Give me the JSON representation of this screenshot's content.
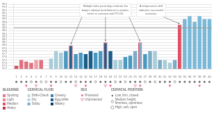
{
  "chart_data": {
    "type": "bar",
    "categories": [
      "1",
      "2",
      "3",
      "4",
      "5",
      "6",
      "7",
      "8",
      "9",
      "10",
      "11",
      "12",
      "13",
      "14",
      "15",
      "16",
      "17",
      "18",
      "19",
      "20",
      "21",
      "22",
      "23",
      "24",
      "25",
      "26",
      "27",
      "28",
      "29",
      "30",
      "31",
      "32",
      "33",
      "34",
      "35",
      "36",
      "37",
      "38",
      "39",
      "40"
    ],
    "values": [
      97.3,
      97.5,
      97.45,
      97.4,
      97.5,
      97.5,
      97.2,
      97.55,
      97.8,
      97.75,
      97.8,
      98.0,
      97.7,
      97.75,
      97.7,
      97.8,
      97.75,
      97.8,
      98.1,
      97.8,
      97.5,
      97.5,
      97.6,
      97.65,
      97.8,
      98.1,
      97.7,
      97.8,
      97.8,
      97.5,
      97.5,
      97.4,
      97.5,
      98.7,
      98.9,
      99.0,
      98.8,
      99.0,
      98.9,
      98.9
    ],
    "colors": [
      "#d45060",
      "#e07080",
      "#e07080",
      "#e07080",
      "#f0a0a8",
      "#e07080",
      "#f0a0a8",
      "#a8ccd8",
      "#a8ccd8",
      "#a8ccd8",
      "#4898c0",
      "#1a5c88",
      "#4898c0",
      "#4898c0",
      "#1a5c88",
      "#1a5c88",
      "#4898c0",
      "#4898c0",
      "#1a5c88",
      "#1a5c88",
      "#a8ccd8",
      "#a8ccd8",
      "#4898c0",
      "#4898c0",
      "#7aacc8",
      "#7aacc8",
      "#4898c0",
      "#7aacc8",
      "#a8ccd8",
      "#7aacc8",
      "#a8ccd8",
      "#a8ccd8",
      "#7aacc8",
      "#e05060",
      "#7ab8d8",
      "#7ab8d8",
      "#7ab8d8",
      "#7ab8d8",
      "#7ab8d8",
      "#7ab8d8"
    ],
    "ylim": [
      97.2,
      99.45
    ],
    "yticks": [
      97.2,
      97.3,
      97.4,
      97.5,
      97.6,
      97.7,
      97.8,
      97.9,
      {
        "value": 98,
        "label": "98.0"
      },
      98.1,
      98.2,
      98.3,
      98.4,
      98.5,
      98.6,
      98.7,
      98.8,
      98.9,
      {
        "value": 99,
        "label": "99.0"
      },
      99.1,
      99.2,
      99.3,
      99.4
    ],
    "grid": true,
    "coverline": 98.6,
    "coverline_color": "#999999",
    "outlined_days": [
      12,
      19,
      26,
      34
    ],
    "outline_color": "#e04060",
    "annotations": [
      {
        "text": "Multiple false peak days indicate the\nbody's attempt (and failure) to ovulate,\nwhich is common with PCOS.",
        "days": [
          12,
          19,
          26
        ]
      },
      {
        "text": "A temperature shift\nindicates successful\novulation.",
        "days": [
          34
        ]
      }
    ],
    "cervical_position": [
      1,
      1,
      1,
      0,
      1,
      0,
      0,
      1,
      1,
      0,
      1,
      1,
      0,
      1,
      1,
      1,
      0,
      1,
      1,
      1,
      0,
      1,
      0,
      1,
      1,
      1,
      0,
      1,
      0,
      1,
      1,
      1,
      0,
      1,
      1,
      1,
      1,
      1,
      1,
      1
    ],
    "sex_protected": [
      3,
      8,
      15,
      20,
      26,
      32,
      38
    ],
    "sex_unprotected": [
      5,
      13,
      19,
      25
    ],
    "sex_color": "#e06080",
    "legend_groups": [
      {
        "title": "BLEEDING",
        "items": [
          {
            "label": "Spotting",
            "color": "#e87090"
          },
          {
            "label": "Light",
            "color": "#f08090"
          },
          {
            "label": "Medium",
            "color": "#e05060"
          },
          {
            "label": "Heavy",
            "color": "#c03040"
          }
        ]
      },
      {
        "title": "CERVICAL FLUID",
        "items": [
          {
            "label": "Shift+Check",
            "color": "#c0d4dc"
          },
          {
            "label": "Dry",
            "color": "#b8d4e0"
          },
          {
            "label": "Sticky",
            "color": "#7aacca"
          },
          {
            "label": "Creamy",
            "color": "#3a7ca8"
          },
          {
            "label": "Egg white",
            "color": "#1a5c88"
          },
          {
            "label": "Watery",
            "color": "#0a3c68"
          }
        ]
      },
      {
        "title": "SEX",
        "items": [
          {
            "label": "Protected",
            "marker": "triangle",
            "filled": true
          },
          {
            "label": "Unprotected",
            "marker": "triangle",
            "filled": false
          }
        ]
      },
      {
        "title": "CERVICAL POSITION",
        "items": [
          {
            "label": "Low, firm, closed",
            "marker": "small",
            "filled": true
          },
          {
            "label": "Medium height,\nfirmness, openness",
            "marker": "medium",
            "filled": false
          },
          {
            "label": "High, soft, open",
            "marker": "large",
            "filled": false
          }
        ]
      }
    ]
  }
}
